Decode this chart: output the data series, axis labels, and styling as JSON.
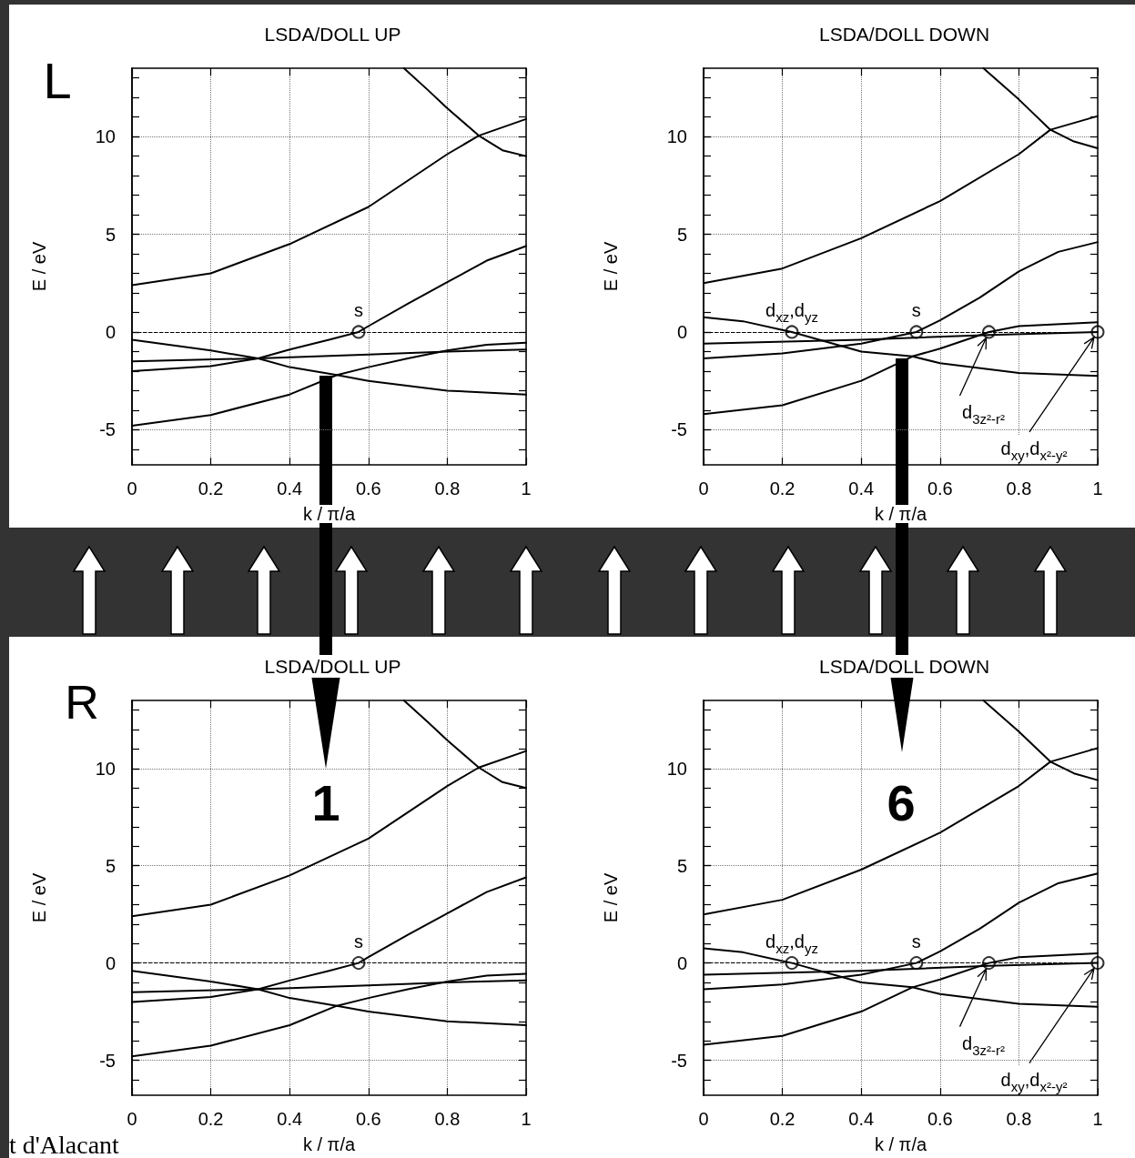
{
  "chart_data": [
    {
      "type": "line",
      "title": "LSDA/DOLL UP",
      "xlabel": "k / π/a",
      "ylabel": "E / eV",
      "xlim": [
        0,
        1
      ],
      "ylim": [
        -6.8,
        13.5
      ],
      "xticks": [
        0,
        0.2,
        0.4,
        0.6,
        0.8,
        1
      ],
      "yticks": [
        {
          "value": -6,
          "label": null
        },
        -5,
        {
          "value": -4,
          "label": null
        },
        {
          "value": -3,
          "label": null
        },
        {
          "value": -2,
          "label": null
        },
        {
          "value": -1,
          "label": null
        },
        0,
        {
          "value": 1,
          "label": null
        },
        {
          "value": 2,
          "label": null
        },
        {
          "value": 3,
          "label": null
        },
        {
          "value": 4,
          "label": null
        },
        5,
        {
          "value": 6,
          "label": null
        },
        {
          "value": 7,
          "label": null
        },
        {
          "value": 8,
          "label": null
        },
        {
          "value": 9,
          "label": null
        },
        10,
        {
          "value": 11,
          "label": null
        },
        {
          "value": 12,
          "label": null
        },
        {
          "value": 13,
          "label": null
        }
      ],
      "grid": true,
      "marker": "none",
      "line_style": "solid",
      "ref_lines": [
        {
          "axis": "y",
          "value": 0,
          "line_style": "dashed"
        }
      ],
      "series": [
        {
          "color": "#000000",
          "x": [
            0.69,
            0.75,
            0.8,
            0.88,
            0.94,
            1
          ],
          "values": [
            13.5,
            12.4,
            11.45,
            10.05,
            9.3,
            9.0
          ]
        },
        {
          "color": "#000000",
          "x": [
            0,
            0.2,
            0.4,
            0.6,
            0.8,
            0.88,
            1
          ],
          "values": [
            2.4,
            3.0,
            4.5,
            6.4,
            9.1,
            10.05,
            10.9
          ]
        },
        {
          "color": "#000000",
          "x": [
            0,
            0.2,
            0.32,
            0.4,
            0.5,
            0.575,
            0.6,
            0.7,
            0.8,
            0.9,
            1
          ],
          "values": [
            -2.0,
            -1.75,
            -1.35,
            -0.9,
            -0.4,
            0,
            0.3,
            1.45,
            2.55,
            3.65,
            4.4
          ]
        },
        {
          "color": "#000000",
          "x": [
            0,
            0.2,
            0.4,
            0.52,
            0.6,
            0.7,
            0.8,
            0.9,
            1
          ],
          "values": [
            -4.8,
            -4.25,
            -3.2,
            -2.2,
            -1.8,
            -1.35,
            -0.95,
            -0.65,
            -0.55
          ]
        },
        {
          "color": "#000000",
          "x": [
            0,
            0.32,
            0.6,
            0.8,
            1
          ],
          "values": [
            -1.5,
            -1.35,
            -1.15,
            -1.0,
            -0.9
          ]
        },
        {
          "color": "#000000",
          "x": [
            0,
            0.2,
            0.32,
            0.4,
            0.52,
            0.6,
            0.8,
            1
          ],
          "values": [
            -0.4,
            -0.95,
            -1.35,
            -1.8,
            -2.2,
            -2.5,
            -3.0,
            -3.2
          ]
        },
        {
          "type": "scatter",
          "marker": "circle",
          "color": "#000000",
          "x": [
            0.575
          ],
          "values": [
            0
          ]
        }
      ],
      "annotations": [
        {
          "text": "s",
          "x": 0.575,
          "y": 0
        },
        "L"
      ]
    },
    {
      "type": "line",
      "title": "LSDA/DOLL DOWN",
      "xlabel": "k / π/a",
      "ylabel": "E / eV",
      "xlim": [
        0,
        1
      ],
      "ylim": [
        -6.8,
        13.5
      ],
      "xticks": [
        0,
        0.2,
        0.4,
        0.6,
        0.8,
        1
      ],
      "yticks": [
        {
          "value": -6,
          "label": null
        },
        -5,
        {
          "value": -4,
          "label": null
        },
        {
          "value": -3,
          "label": null
        },
        {
          "value": -2,
          "label": null
        },
        {
          "value": -1,
          "label": null
        },
        0,
        {
          "value": 1,
          "label": null
        },
        {
          "value": 2,
          "label": null
        },
        {
          "value": 3,
          "label": null
        },
        {
          "value": 4,
          "label": null
        },
        5,
        {
          "value": 6,
          "label": null
        },
        {
          "value": 7,
          "label": null
        },
        {
          "value": 8,
          "label": null
        },
        {
          "value": 9,
          "label": null
        },
        10,
        {
          "value": 11,
          "label": null
        },
        {
          "value": 12,
          "label": null
        },
        {
          "value": 13,
          "label": null
        }
      ],
      "grid": true,
      "marker": "none",
      "line_style": "solid",
      "ref_lines": [
        {
          "axis": "y",
          "value": 0,
          "line_style": "dashed"
        }
      ],
      "series": [
        {
          "color": "#000000",
          "x": [
            0.71,
            0.8,
            0.88,
            0.94,
            1
          ],
          "values": [
            13.5,
            11.9,
            10.35,
            9.75,
            9.4
          ]
        },
        {
          "color": "#000000",
          "x": [
            0,
            0.2,
            0.4,
            0.6,
            0.8,
            0.88,
            1
          ],
          "values": [
            2.5,
            3.25,
            4.8,
            6.7,
            9.1,
            10.35,
            11.05
          ]
        },
        {
          "color": "#000000",
          "x": [
            0,
            0.2,
            0.4,
            0.54,
            0.6,
            0.7,
            0.8,
            0.9,
            1
          ],
          "values": [
            -1.35,
            -1.1,
            -0.6,
            0,
            0.6,
            1.75,
            3.1,
            4.1,
            4.6
          ]
        },
        {
          "color": "#000000",
          "x": [
            0,
            0.2,
            0.4,
            0.53,
            0.6,
            0.724,
            0.8,
            1
          ],
          "values": [
            -4.2,
            -3.75,
            -2.5,
            -1.25,
            -0.85,
            0,
            0.3,
            0.5
          ]
        },
        {
          "color": "#000000",
          "x": [
            0,
            0.1,
            0.2,
            0.224,
            0.4,
            0.53,
            0.6,
            0.8,
            1
          ],
          "values": [
            0.75,
            0.55,
            0.1,
            0,
            -1.0,
            -1.25,
            -1.6,
            -2.1,
            -2.25
          ]
        },
        {
          "color": "#000000",
          "x": [
            0,
            0.4,
            0.724,
            1
          ],
          "values": [
            -0.6,
            -0.4,
            -0.15,
            0
          ]
        },
        {
          "type": "scatter",
          "marker": "circle",
          "color": "#000000",
          "x": [
            0.224,
            0.54,
            0.724,
            1
          ],
          "values": [
            0,
            0,
            0,
            0
          ]
        }
      ],
      "annotations": [
        {
          "text": "d$_{xz}$,d$_{yz}$",
          "x": 0.224,
          "y": 0
        },
        {
          "text": "s",
          "x": 0.54,
          "y": 0
        },
        {
          "text": "d$_{3z²-r²}$",
          "x": 0.724,
          "y": 0
        },
        {
          "text": "d$_{xy}$,d$_{x²-y²}$",
          "x": 1,
          "y": 0
        }
      ]
    },
    {
      "type": "line",
      "title": "LSDA/DOLL UP",
      "xlabel": "k / π/a",
      "ylabel": "E / eV",
      "xlim": [
        0,
        1
      ],
      "ylim": [
        -6.8,
        13.5
      ],
      "xticks": [
        0,
        0.2,
        0.4,
        0.6,
        0.8,
        1
      ],
      "yticks": [
        {
          "value": -6,
          "label": null
        },
        -5,
        {
          "value": -4,
          "label": null
        },
        {
          "value": -3,
          "label": null
        },
        {
          "value": -2,
          "label": null
        },
        {
          "value": -1,
          "label": null
        },
        0,
        {
          "value": 1,
          "label": null
        },
        {
          "value": 2,
          "label": null
        },
        {
          "value": 3,
          "label": null
        },
        {
          "value": 4,
          "label": null
        },
        5,
        {
          "value": 6,
          "label": null
        },
        {
          "value": 7,
          "label": null
        },
        {
          "value": 8,
          "label": null
        },
        {
          "value": 9,
          "label": null
        },
        10,
        {
          "value": 11,
          "label": null
        },
        {
          "value": 12,
          "label": null
        },
        {
          "value": 13,
          "label": null
        }
      ],
      "grid": true,
      "marker": "none",
      "line_style": "solid",
      "ref_lines": [
        {
          "axis": "y",
          "value": 0,
          "line_style": "dashed"
        }
      ],
      "series": [
        {
          "color": "#000000",
          "x": [
            0.69,
            0.75,
            0.8,
            0.88,
            0.94,
            1
          ],
          "values": [
            13.5,
            12.4,
            11.45,
            10.05,
            9.3,
            9.0
          ]
        },
        {
          "color": "#000000",
          "x": [
            0,
            0.2,
            0.4,
            0.6,
            0.8,
            0.88,
            1
          ],
          "values": [
            2.4,
            3.0,
            4.5,
            6.4,
            9.1,
            10.05,
            10.9
          ]
        },
        {
          "color": "#000000",
          "x": [
            0,
            0.2,
            0.32,
            0.4,
            0.5,
            0.575,
            0.6,
            0.7,
            0.8,
            0.9,
            1
          ],
          "values": [
            -2.0,
            -1.75,
            -1.35,
            -0.9,
            -0.4,
            0,
            0.3,
            1.45,
            2.55,
            3.65,
            4.4
          ]
        },
        {
          "color": "#000000",
          "x": [
            0,
            0.2,
            0.4,
            0.52,
            0.6,
            0.7,
            0.8,
            0.9,
            1
          ],
          "values": [
            -4.8,
            -4.25,
            -3.2,
            -2.2,
            -1.8,
            -1.35,
            -0.95,
            -0.65,
            -0.55
          ]
        },
        {
          "color": "#000000",
          "x": [
            0,
            0.32,
            0.6,
            0.8,
            1
          ],
          "values": [
            -1.5,
            -1.35,
            -1.15,
            -1.0,
            -0.9
          ]
        },
        {
          "color": "#000000",
          "x": [
            0,
            0.2,
            0.32,
            0.4,
            0.52,
            0.6,
            0.8,
            1
          ],
          "values": [
            -0.4,
            -0.95,
            -1.35,
            -1.8,
            -2.2,
            -2.5,
            -3.0,
            -3.2
          ]
        },
        {
          "type": "scatter",
          "marker": "circle",
          "color": "#000000",
          "x": [
            0.575
          ],
          "values": [
            0
          ]
        }
      ],
      "annotations": [
        {
          "text": "s",
          "x": 0.575,
          "y": 0
        },
        "R",
        "1",
        "t d'Alacant"
      ]
    },
    {
      "type": "line",
      "title": "LSDA/DOLL DOWN",
      "xlabel": "k / π/a",
      "ylabel": "E / eV",
      "xlim": [
        0,
        1
      ],
      "ylim": [
        -6.8,
        13.5
      ],
      "xticks": [
        0,
        0.2,
        0.4,
        0.6,
        0.8,
        1
      ],
      "yticks": [
        {
          "value": -6,
          "label": null
        },
        -5,
        {
          "value": -4,
          "label": null
        },
        {
          "value": -3,
          "label": null
        },
        {
          "value": -2,
          "label": null
        },
        {
          "value": -1,
          "label": null
        },
        0,
        {
          "value": 1,
          "label": null
        },
        {
          "value": 2,
          "label": null
        },
        {
          "value": 3,
          "label": null
        },
        {
          "value": 4,
          "label": null
        },
        5,
        {
          "value": 6,
          "label": null
        },
        {
          "value": 7,
          "label": null
        },
        {
          "value": 8,
          "label": null
        },
        {
          "value": 9,
          "label": null
        },
        10,
        {
          "value": 11,
          "label": null
        },
        {
          "value": 12,
          "label": null
        },
        {
          "value": 13,
          "label": null
        }
      ],
      "grid": true,
      "marker": "none",
      "line_style": "solid",
      "ref_lines": [
        {
          "axis": "y",
          "value": 0,
          "line_style": "dashed"
        }
      ],
      "series": [
        {
          "color": "#000000",
          "x": [
            0.71,
            0.8,
            0.88,
            0.94,
            1
          ],
          "values": [
            13.5,
            11.9,
            10.35,
            9.75,
            9.4
          ]
        },
        {
          "color": "#000000",
          "x": [
            0,
            0.2,
            0.4,
            0.6,
            0.8,
            0.88,
            1
          ],
          "values": [
            2.5,
            3.25,
            4.8,
            6.7,
            9.1,
            10.35,
            11.05
          ]
        },
        {
          "color": "#000000",
          "x": [
            0,
            0.2,
            0.4,
            0.54,
            0.6,
            0.7,
            0.8,
            0.9,
            1
          ],
          "values": [
            -1.35,
            -1.1,
            -0.6,
            0,
            0.6,
            1.75,
            3.1,
            4.1,
            4.6
          ]
        },
        {
          "color": "#000000",
          "x": [
            0,
            0.2,
            0.4,
            0.53,
            0.6,
            0.724,
            0.8,
            1
          ],
          "values": [
            -4.2,
            -3.75,
            -2.5,
            -1.25,
            -0.85,
            0,
            0.3,
            0.5
          ]
        },
        {
          "color": "#000000",
          "x": [
            0,
            0.1,
            0.2,
            0.224,
            0.4,
            0.53,
            0.6,
            0.8,
            1
          ],
          "values": [
            0.75,
            0.55,
            0.1,
            0,
            -1.0,
            -1.25,
            -1.6,
            -2.1,
            -2.25
          ]
        },
        {
          "color": "#000000",
          "x": [
            0,
            0.4,
            0.724,
            1
          ],
          "values": [
            -0.6,
            -0.4,
            -0.15,
            0
          ]
        },
        {
          "type": "scatter",
          "marker": "circle",
          "color": "#000000",
          "x": [
            0.224,
            0.54,
            0.724,
            1
          ],
          "values": [
            0,
            0,
            0,
            0
          ]
        }
      ],
      "annotations": [
        {
          "text": "d$_{xz}$,d$_{yz}$",
          "x": 0.224,
          "y": 0
        },
        {
          "text": "s",
          "x": 0.54,
          "y": 0
        },
        {
          "text": "d$_{3z²-r²}$",
          "x": 0.724,
          "y": 0
        },
        {
          "text": "d$_{xy}$,d$_{x²-y²}$",
          "x": 1,
          "y": 0
        },
        "6"
      ]
    }
  ]
}
